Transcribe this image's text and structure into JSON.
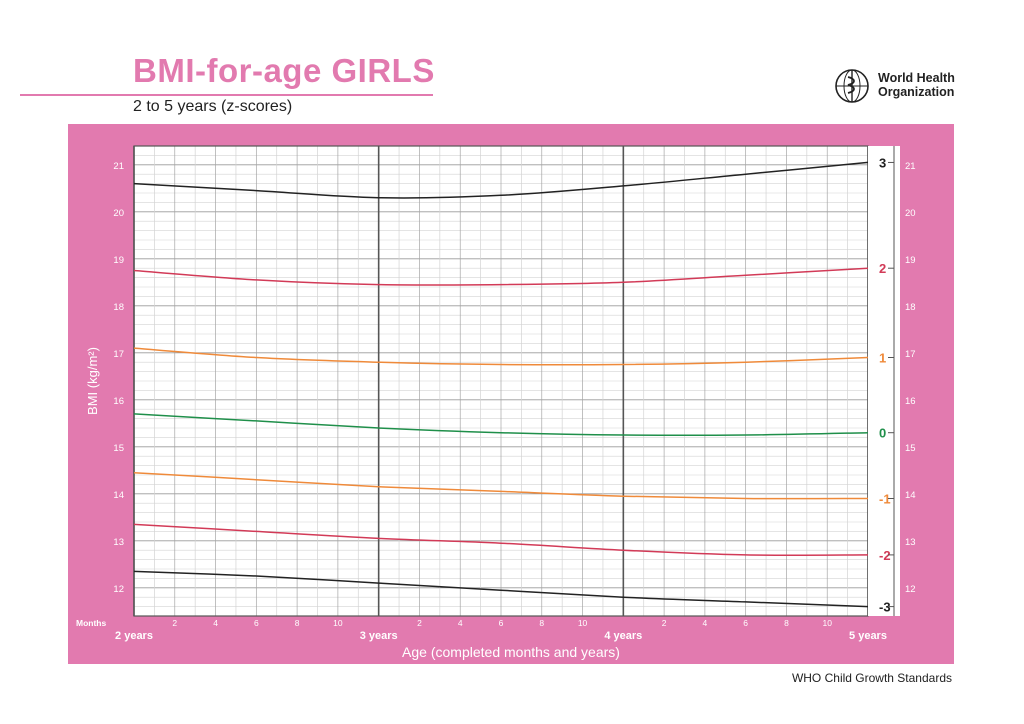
{
  "header": {
    "title": "BMI-for-age GIRLS",
    "subtitle": "2 to 5 years (z-scores)",
    "org_name_line1": "World Health",
    "org_name_line2": "Organization"
  },
  "footer": {
    "text": "WHO Child Growth Standards"
  },
  "colors": {
    "panel": "#e27aaf",
    "z3": "#222222",
    "z2": "#d23a57",
    "z1": "#ef8a3a",
    "z0": "#1f8f4a"
  },
  "chart_data": {
    "type": "line",
    "title": "BMI-for-age GIRLS",
    "subtitle": "2 to 5 years (z-scores)",
    "xlabel": "Age (completed months and years)",
    "ylabel": "BMI (kg/m²)",
    "months_label": "Months",
    "x_unit": "months",
    "xlim": [
      24,
      60
    ],
    "ylim": [
      11.4,
      21.4
    ],
    "y_ticks": [
      12,
      13,
      14,
      15,
      16,
      17,
      18,
      19,
      20,
      21
    ],
    "year_labels": [
      {
        "month": 24,
        "label": "2 years"
      },
      {
        "month": 36,
        "label": "3 years"
      },
      {
        "month": 48,
        "label": "4 years"
      },
      {
        "month": 60,
        "label": "5 years"
      }
    ],
    "month_tick_labels": [
      "2",
      "4",
      "6",
      "8",
      "10"
    ],
    "grid": true,
    "series": [
      {
        "name": "3",
        "color": "#222222",
        "x": [
          24,
          30,
          36,
          42,
          48,
          54,
          60
        ],
        "values": [
          20.6,
          20.45,
          20.3,
          20.35,
          20.55,
          20.8,
          21.05
        ]
      },
      {
        "name": "2",
        "color": "#d23a57",
        "x": [
          24,
          30,
          36,
          42,
          48,
          54,
          60
        ],
        "values": [
          18.75,
          18.55,
          18.45,
          18.45,
          18.5,
          18.65,
          18.8
        ]
      },
      {
        "name": "1",
        "color": "#ef8a3a",
        "x": [
          24,
          30,
          36,
          42,
          48,
          54,
          60
        ],
        "values": [
          17.1,
          16.9,
          16.8,
          16.75,
          16.75,
          16.8,
          16.9
        ]
      },
      {
        "name": "0",
        "color": "#1f8f4a",
        "x": [
          24,
          30,
          36,
          42,
          48,
          54,
          60
        ],
        "values": [
          15.7,
          15.55,
          15.4,
          15.3,
          15.25,
          15.25,
          15.3
        ]
      },
      {
        "name": "-1",
        "color": "#ef8a3a",
        "x": [
          24,
          30,
          36,
          42,
          48,
          54,
          60
        ],
        "values": [
          14.45,
          14.3,
          14.15,
          14.05,
          13.95,
          13.9,
          13.9
        ]
      },
      {
        "name": "-2",
        "color": "#d23a57",
        "x": [
          24,
          30,
          36,
          42,
          48,
          54,
          60
        ],
        "values": [
          13.35,
          13.2,
          13.05,
          12.95,
          12.8,
          12.7,
          12.7
        ]
      },
      {
        "name": "-3",
        "color": "#222222",
        "x": [
          24,
          30,
          36,
          42,
          48,
          54,
          60
        ],
        "values": [
          12.35,
          12.25,
          12.1,
          11.95,
          11.8,
          11.7,
          11.6
        ]
      }
    ]
  }
}
